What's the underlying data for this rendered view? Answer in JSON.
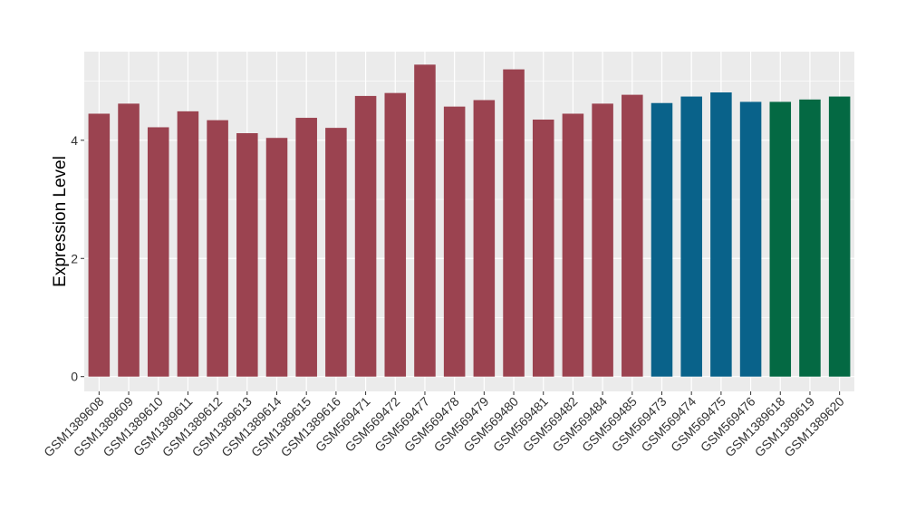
{
  "chart_data": {
    "type": "bar",
    "title": "",
    "xlabel": "",
    "ylabel": "Expression Level",
    "ylim": [
      -0.25,
      5.5
    ],
    "yticks": [
      0,
      2,
      4
    ],
    "grid": true,
    "legend": "none",
    "categories": [
      "GSM1389608",
      "GSM1389609",
      "GSM1389610",
      "GSM1389611",
      "GSM1389612",
      "GSM1389613",
      "GSM1389614",
      "GSM1389615",
      "GSM1389616",
      "GSM569471",
      "GSM569472",
      "GSM569477",
      "GSM569478",
      "GSM569479",
      "GSM569480",
      "GSM569481",
      "GSM569482",
      "GSM569484",
      "GSM569485",
      "GSM569473",
      "GSM569474",
      "GSM569475",
      "GSM569476",
      "GSM1389618",
      "GSM1389619",
      "GSM1389620"
    ],
    "values": [
      4.45,
      4.62,
      4.22,
      4.49,
      4.34,
      4.12,
      4.04,
      4.38,
      4.21,
      4.75,
      4.8,
      5.28,
      4.57,
      4.68,
      5.2,
      4.35,
      4.45,
      4.62,
      4.77,
      4.63,
      4.74,
      4.81,
      4.65,
      4.65,
      4.69,
      4.74
    ],
    "bar_colors": [
      "#9b4350",
      "#9b4350",
      "#9b4350",
      "#9b4350",
      "#9b4350",
      "#9b4350",
      "#9b4350",
      "#9b4350",
      "#9b4350",
      "#9b4350",
      "#9b4350",
      "#9b4350",
      "#9b4350",
      "#9b4350",
      "#9b4350",
      "#9b4350",
      "#9b4350",
      "#9b4350",
      "#9b4350",
      "#09628a",
      "#09628a",
      "#09628a",
      "#09628a",
      "#046943",
      "#046943",
      "#046943"
    ],
    "panel_background": "#ebebeb",
    "grid_color": "#ffffff"
  }
}
